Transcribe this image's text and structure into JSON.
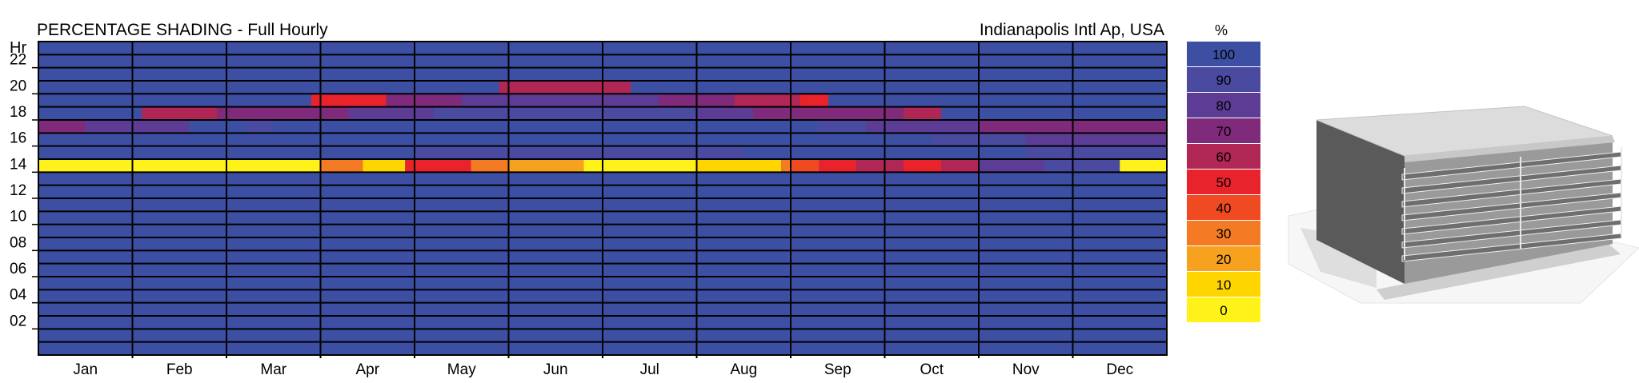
{
  "chart_data": {
    "type": "heatmap",
    "title": "PERCENTAGE SHADING - Full Hourly",
    "location": "Indianapolis Intl Ap, USA",
    "y_axis_label": "Hr",
    "x_categories": [
      "Jan",
      "Feb",
      "Mar",
      "Apr",
      "May",
      "Jun",
      "Jul",
      "Aug",
      "Sep",
      "Oct",
      "Nov",
      "Dec"
    ],
    "y_tick_labels": [
      "22",
      "20",
      "18",
      "16",
      "14",
      "12",
      "10",
      "08",
      "06",
      "04",
      "02"
    ],
    "y_ticks_hours": [
      22,
      20,
      18,
      16,
      14,
      12,
      10,
      8,
      6,
      4,
      2
    ],
    "hours": 24,
    "legend": {
      "title": "%",
      "levels": [
        100,
        90,
        80,
        70,
        60,
        50,
        40,
        30,
        20,
        10,
        0
      ],
      "labels": [
        "100",
        "90",
        "80",
        "70",
        "60",
        "50",
        "40",
        "30",
        "20",
        "10",
        "0"
      ],
      "colors": [
        "#3c4fa3",
        "#4a4aa0",
        "#5c3c95",
        "#7f2a7a",
        "#b02654",
        "#e8232c",
        "#f04a23",
        "#f47a23",
        "#f7a21e",
        "#ffd500",
        "#fff21a"
      ]
    },
    "base_value": 100,
    "bands": [
      {
        "hour": 14,
        "segments": [
          {
            "start": 0,
            "end": 3,
            "value": 0
          },
          {
            "start": 3,
            "end": 3.45,
            "value": 30
          },
          {
            "start": 3.45,
            "end": 3.9,
            "value": 10
          },
          {
            "start": 3.9,
            "end": 4.6,
            "value": 50
          },
          {
            "start": 4.6,
            "end": 5,
            "value": 30
          },
          {
            "start": 5,
            "end": 5.8,
            "value": 20
          },
          {
            "start": 5.8,
            "end": 6.2,
            "value": 0
          },
          {
            "start": 6.2,
            "end": 7,
            "value": 0
          },
          {
            "start": 7,
            "end": 7.4,
            "value": 10
          },
          {
            "start": 7.4,
            "end": 7.9,
            "value": 10
          },
          {
            "start": 7.9,
            "end": 8,
            "value": 30
          },
          {
            "start": 8,
            "end": 8.3,
            "value": 40
          },
          {
            "start": 8.3,
            "end": 8.7,
            "value": 50
          },
          {
            "start": 8.7,
            "end": 9.2,
            "value": 60
          },
          {
            "start": 9.2,
            "end": 9.6,
            "value": 50
          },
          {
            "start": 9.6,
            "end": 10,
            "value": 60
          },
          {
            "start": 10,
            "end": 10.7,
            "value": 80
          },
          {
            "start": 10.7,
            "end": 11.5,
            "value": 90
          },
          {
            "start": 11.5,
            "end": 12,
            "value": 0
          }
        ]
      },
      {
        "hour": 15,
        "segments": [
          {
            "start": 4,
            "end": 5,
            "value": 90
          },
          {
            "start": 5,
            "end": 7.5,
            "value": 90
          },
          {
            "start": 10.5,
            "end": 12,
            "value": 90
          }
        ]
      },
      {
        "hour": 16,
        "segments": [
          {
            "start": 9.5,
            "end": 10.5,
            "value": 90
          },
          {
            "start": 10.5,
            "end": 12,
            "value": 80
          }
        ]
      },
      {
        "hour": 17,
        "segments": [
          {
            "start": 0,
            "end": 0.5,
            "value": 70
          },
          {
            "start": 0.5,
            "end": 1.6,
            "value": 80
          },
          {
            "start": 2.2,
            "end": 2.5,
            "value": 90
          },
          {
            "start": 8.3,
            "end": 8.8,
            "value": 90
          },
          {
            "start": 8.8,
            "end": 10,
            "value": 80
          },
          {
            "start": 10,
            "end": 10.5,
            "value": 70
          },
          {
            "start": 10.5,
            "end": 12,
            "value": 70
          }
        ]
      },
      {
        "hour": 18,
        "segments": [
          {
            "start": 1.1,
            "end": 1.9,
            "value": 60
          },
          {
            "start": 1.9,
            "end": 2.5,
            "value": 70
          },
          {
            "start": 2.5,
            "end": 3.3,
            "value": 70
          },
          {
            "start": 3.3,
            "end": 4.2,
            "value": 80
          },
          {
            "start": 4.2,
            "end": 6.2,
            "value": 90
          },
          {
            "start": 6.2,
            "end": 7,
            "value": 90
          },
          {
            "start": 7,
            "end": 7.6,
            "value": 80
          },
          {
            "start": 7.6,
            "end": 8.5,
            "value": 70
          },
          {
            "start": 8.5,
            "end": 9.2,
            "value": 70
          },
          {
            "start": 9.2,
            "end": 9.6,
            "value": 60
          }
        ]
      },
      {
        "hour": 19,
        "segments": [
          {
            "start": 2.9,
            "end": 3.2,
            "value": 50
          },
          {
            "start": 3.2,
            "end": 3.7,
            "value": 50
          },
          {
            "start": 3.7,
            "end": 4.5,
            "value": 70
          },
          {
            "start": 4.5,
            "end": 5.2,
            "value": 80
          },
          {
            "start": 5.2,
            "end": 6.6,
            "value": 80
          },
          {
            "start": 6.6,
            "end": 7.4,
            "value": 70
          },
          {
            "start": 7.4,
            "end": 8.1,
            "value": 60
          },
          {
            "start": 8.1,
            "end": 8.4,
            "value": 50
          }
        ]
      },
      {
        "hour": 20,
        "segments": [
          {
            "start": 4.9,
            "end": 6.3,
            "value": 60
          }
        ]
      }
    ]
  }
}
